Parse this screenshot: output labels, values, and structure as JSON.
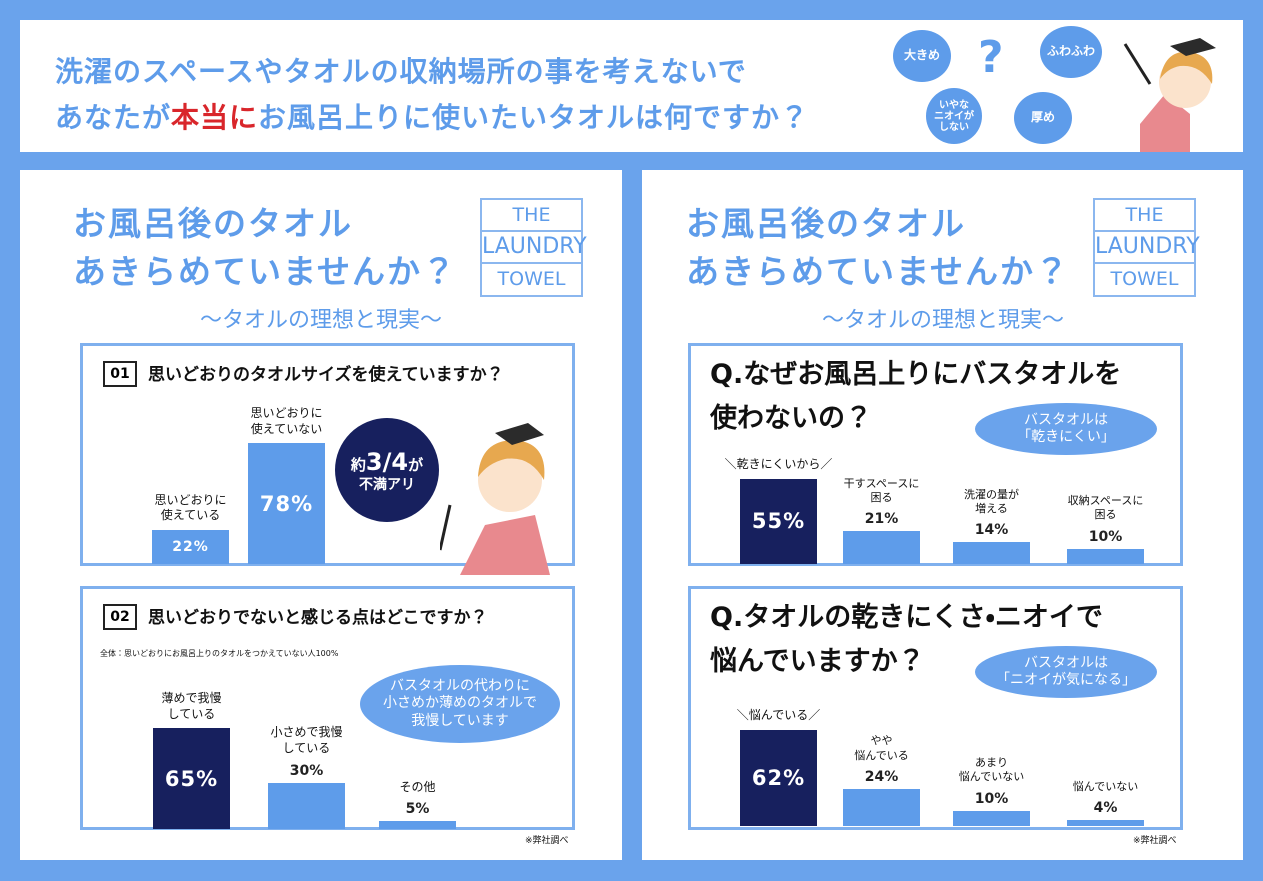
{
  "header": {
    "line1": "洗濯のスペースやタオルの収納場所の事を考えないで",
    "line2_before": "あなたが",
    "line2_highlight": "本当に",
    "line2_after": "お風呂上りに使いたいタオルは何ですか？",
    "bubbles": [
      "大きめ",
      "?",
      "ふわふわ",
      "いやな\nニオイが\nしない",
      "厚め"
    ]
  },
  "panels": [
    {
      "title": "お風呂後のタオル\nあきらめていませんか？",
      "logo": [
        "THE",
        "LAUNDRY",
        "TOWEL"
      ],
      "subtitle": "〜タオルの理想と現実〜"
    },
    {
      "title": "お風呂後のタオル\nあきらめていませんか？",
      "logo": [
        "THE",
        "LAUNDRY",
        "TOWEL"
      ],
      "subtitle": "〜タオルの理想と現実〜"
    }
  ],
  "chart_data": [
    {
      "type": "bar",
      "number": "01",
      "title": "思いどおりのタオルサイズを使えていますか？",
      "categories": [
        "思いどおりに\n使えている",
        "思いどおりに\n使えていない"
      ],
      "values": [
        22,
        78
      ],
      "value_labels": [
        "22%",
        "78%"
      ],
      "colors": [
        "#5e9cea",
        "#5e9cea"
      ],
      "annotation": [
        "約",
        "3/4",
        "が",
        "不満アリ"
      ]
    },
    {
      "type": "bar",
      "number": "02",
      "title": "思いどおりでないと感じる点はどこですか？",
      "note": "全体：思いどおりにお風呂上りのタオルをつかえていない人100%",
      "categories": [
        "薄めで我慢\nしている",
        "小さめで我慢\nしている",
        "その他"
      ],
      "values": [
        65,
        30,
        5
      ],
      "value_labels": [
        "65%",
        "30%",
        "5%"
      ],
      "colors": [
        "#17205e",
        "#5e9cea",
        "#5e9cea"
      ],
      "annotation": [
        "バスタオルの代わりに\n小さめか薄めのタオルで\n我慢しています"
      ],
      "source": "※弊社調べ"
    },
    {
      "type": "bar",
      "title": "Q.なぜお風呂上りにバスタオルを\n使わないの？",
      "categories": [
        "＼乾きにくいから／",
        "干すスペースに\n困る",
        "洗濯の量が\n増える",
        "収納スペースに\n困る"
      ],
      "values": [
        55,
        21,
        14,
        10
      ],
      "value_labels": [
        "55%",
        "21%",
        "14%",
        "10%"
      ],
      "colors": [
        "#17205e",
        "#5e9cea",
        "#5e9cea",
        "#5e9cea"
      ],
      "annotation": [
        "バスタオルは\n「乾きにくい」"
      ]
    },
    {
      "type": "bar",
      "title": "Q.タオルの乾きにくさ・ニオイで\n悩んでいますか？",
      "categories": [
        "＼悩んでいる／",
        "やや\n悩んでいる",
        "あまり\n悩んでいない",
        "悩んでいない"
      ],
      "values": [
        62,
        24,
        10,
        4
      ],
      "value_labels": [
        "62%",
        "24%",
        "10%",
        "4%"
      ],
      "colors": [
        "#17205e",
        "#5e9cea",
        "#5e9cea",
        "#5e9cea"
      ],
      "annotation": [
        "バスタオルは\n「ニオイが気になる」"
      ],
      "source": "※弊社調べ"
    }
  ]
}
